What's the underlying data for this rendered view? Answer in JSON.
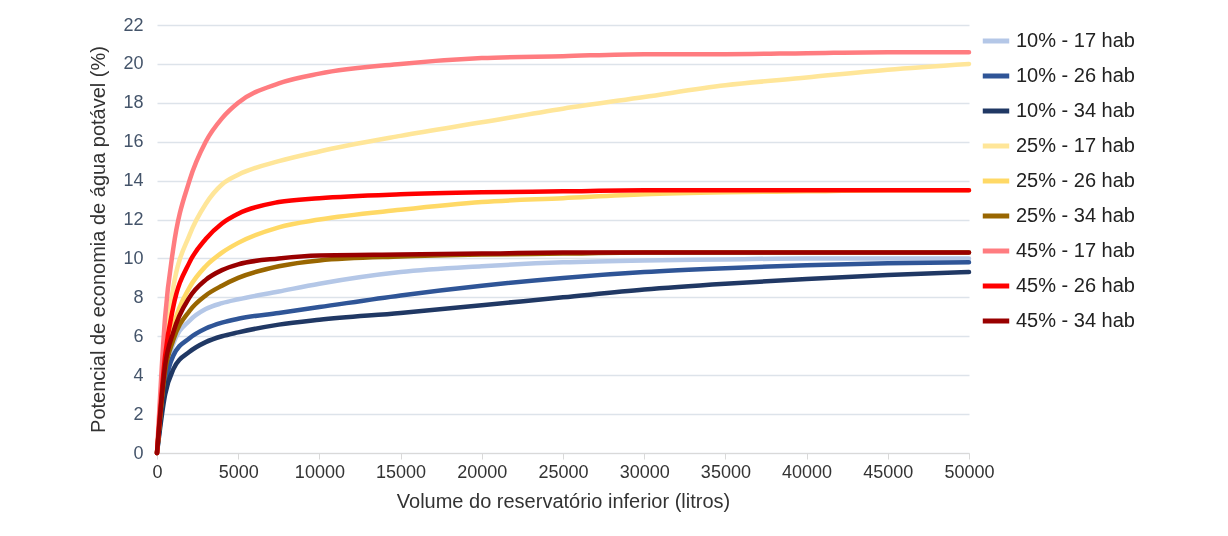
{
  "chart_data": {
    "type": "line",
    "xlabel": "Volume do reservatório inferior (litros)",
    "ylabel": "Potencial de economia de água potável (%)",
    "x": [
      0,
      500,
      1000,
      2000,
      3000,
      4000,
      5000,
      7500,
      10000,
      15000,
      20000,
      25000,
      30000,
      35000,
      40000,
      45000,
      50000
    ],
    "series": [
      {
        "name": "10% - 17 hab",
        "color": "#b4c7e7",
        "values": [
          0,
          4,
          5.6,
          6.8,
          7.4,
          7.7,
          7.9,
          8.3,
          8.7,
          9.3,
          9.6,
          9.8,
          9.9,
          9.95,
          10,
          10,
          10
        ]
      },
      {
        "name": "10% - 26 hab",
        "color": "#2f5597",
        "values": [
          0,
          3.5,
          5,
          5.9,
          6.4,
          6.7,
          6.9,
          7.2,
          7.5,
          8.1,
          8.6,
          9,
          9.3,
          9.5,
          9.65,
          9.75,
          9.8
        ]
      },
      {
        "name": "10% - 34 hab",
        "color": "#203864",
        "values": [
          0,
          3,
          4.3,
          5.2,
          5.7,
          6,
          6.2,
          6.6,
          6.85,
          7.2,
          7.6,
          8,
          8.4,
          8.7,
          8.95,
          9.15,
          9.3
        ]
      },
      {
        "name": "25% - 17 hab",
        "color": "#ffe699",
        "values": [
          0,
          5.5,
          8.5,
          11.2,
          12.8,
          13.8,
          14.3,
          15,
          15.5,
          16.3,
          17,
          17.7,
          18.3,
          18.9,
          19.3,
          19.7,
          20
        ]
      },
      {
        "name": "25% - 26 hab",
        "color": "#ffd966",
        "values": [
          0,
          4.5,
          6.5,
          8.5,
          9.6,
          10.3,
          10.8,
          11.6,
          12,
          12.5,
          12.9,
          13.1,
          13.3,
          13.4,
          13.45,
          13.5,
          13.5
        ]
      },
      {
        "name": "25% - 34 hab",
        "color": "#996600",
        "values": [
          0,
          4.2,
          5.8,
          7.3,
          8.1,
          8.6,
          9,
          9.6,
          9.9,
          10.1,
          10.2,
          10.25,
          10.3,
          10.3,
          10.3,
          10.3,
          10.3
        ]
      },
      {
        "name": "45% - 17 hab",
        "color": "#ff7c80",
        "values": [
          0,
          7,
          10.5,
          14,
          16,
          17.2,
          18,
          19,
          19.5,
          20,
          20.3,
          20.4,
          20.5,
          20.5,
          20.55,
          20.6,
          20.6
        ]
      },
      {
        "name": "45% - 26 hab",
        "color": "#ff0000",
        "values": [
          0,
          5,
          7.5,
          9.8,
          11,
          11.8,
          12.3,
          12.9,
          13.1,
          13.3,
          13.4,
          13.45,
          13.5,
          13.5,
          13.5,
          13.5,
          13.5
        ]
      },
      {
        "name": "45% - 34 hab",
        "color": "#990000",
        "values": [
          0,
          4.5,
          6.2,
          8,
          8.9,
          9.4,
          9.7,
          10,
          10.15,
          10.2,
          10.25,
          10.3,
          10.3,
          10.3,
          10.3,
          10.3,
          10.3
        ]
      }
    ],
    "xlim": [
      0,
      50000
    ],
    "xticks": [
      0,
      5000,
      10000,
      15000,
      20000,
      25000,
      30000,
      35000,
      40000,
      45000,
      50000
    ],
    "ylim": [
      0,
      22
    ],
    "yticks": [
      0,
      2,
      4,
      6,
      8,
      10,
      12,
      14,
      16,
      18,
      20,
      22
    ],
    "grid": "y",
    "legend": "right",
    "line_style": "solid",
    "marker": "none"
  }
}
